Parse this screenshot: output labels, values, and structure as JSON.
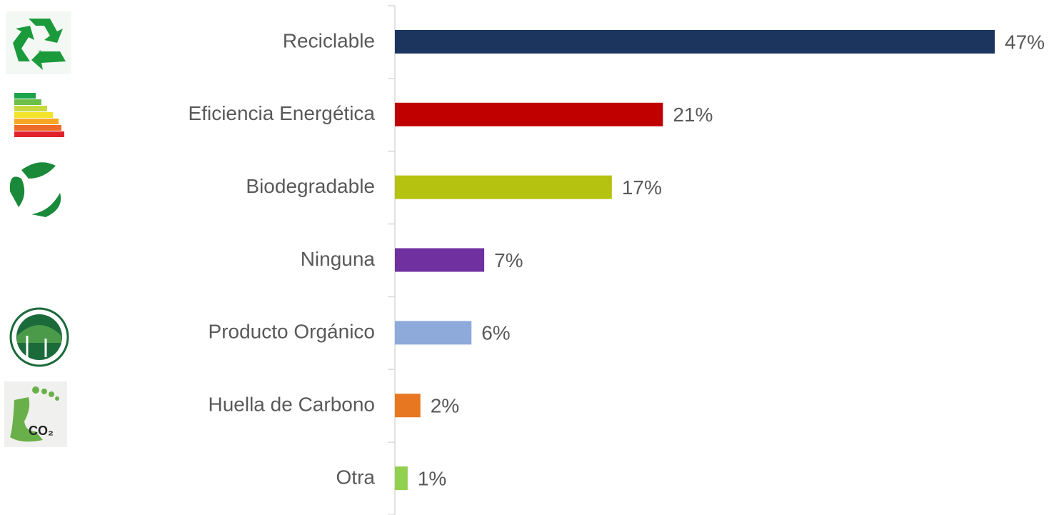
{
  "chart_data": {
    "type": "bar",
    "orientation": "horizontal",
    "categories": [
      "Reciclable",
      "Eficiencia Energética",
      "Biodegradable",
      "Ninguna",
      "Producto Orgánico",
      "Huella de Carbono",
      "Otra"
    ],
    "values": [
      47,
      21,
      17,
      7,
      6,
      2,
      1
    ],
    "value_labels": [
      "47%",
      "21%",
      "17%",
      "7%",
      "6%",
      "2%",
      "1%"
    ],
    "colors": [
      "#1c355e",
      "#c00000",
      "#b5c20f",
      "#7030a0",
      "#8eaadb",
      "#e87722",
      "#92d050"
    ]
  }
}
